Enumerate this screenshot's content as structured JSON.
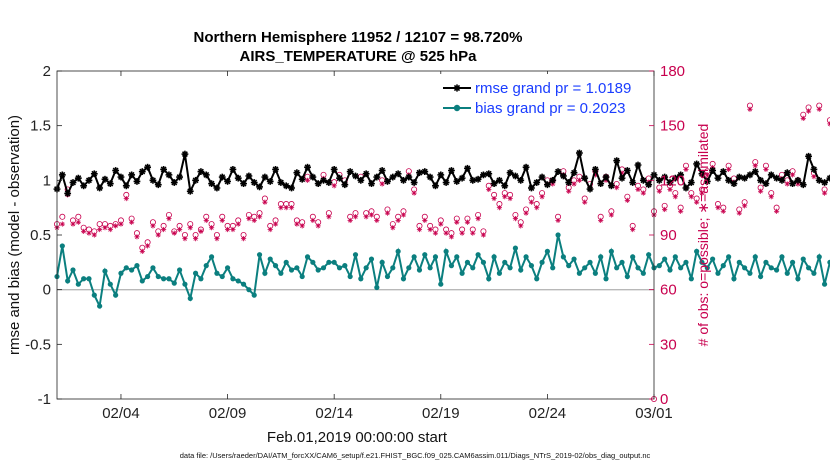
{
  "chart_data": {
    "type": "line",
    "title": "Northern Hemisphere 11952 / 12107 = 98.720%",
    "subtitle": "AIRS_TEMPERATURE @ 525 hPa",
    "xlabel": "Feb.01,2019 00:00:00 start",
    "ylabel": "rmse and bias (model - observation)",
    "y2label": "# of obs: o=possible; ∗=assimilated",
    "footer": "data file: /Users/raeder/DAI/ATM_forcXX/CAM6_setup/f.e21.FHIST_BGC.f09_025.CAM6assim.011/Diags_NTrS_2019-02/obs_diag_output.nc",
    "xlim": [
      0,
      28
    ],
    "ylim": [
      -1,
      2
    ],
    "y2lim": [
      0,
      180
    ],
    "x_ticks": [
      {
        "x": 3,
        "label": "02/04"
      },
      {
        "x": 8,
        "label": "02/09"
      },
      {
        "x": 13,
        "label": "02/14"
      },
      {
        "x": 18,
        "label": "02/19"
      },
      {
        "x": 23,
        "label": "02/24"
      },
      {
        "x": 28,
        "label": "03/01"
      }
    ],
    "y_ticks": [
      {
        "v": -1,
        "label": "-1"
      },
      {
        "v": -0.5,
        "label": "-0.5"
      },
      {
        "v": 0,
        "label": "0"
      },
      {
        "v": 0.5,
        "label": "0.5"
      },
      {
        "v": 1,
        "label": "1"
      },
      {
        "v": 1.5,
        "label": "1.5"
      },
      {
        "v": 2,
        "label": "2"
      }
    ],
    "y2_ticks": [
      {
        "v": 0,
        "label": "0"
      },
      {
        "v": 30,
        "label": "30"
      },
      {
        "v": 60,
        "label": "60"
      },
      {
        "v": 90,
        "label": "90"
      },
      {
        "v": 120,
        "label": "120"
      },
      {
        "v": 150,
        "label": "150"
      },
      {
        "v": 180,
        "label": "180"
      }
    ],
    "legend": {
      "placement": "top-right",
      "entries": [
        {
          "label": "rmse grand pr = 1.0189",
          "color": "#000000",
          "marker": "asterisk"
        },
        {
          "label": "bias grand pr = 0.2023",
          "color": "#0b7f7f",
          "marker": "circle"
        }
      ]
    },
    "x_start": 0.0,
    "x_step": 0.25,
    "rmse": [
      0.92,
      1.05,
      0.88,
      0.98,
      1.02,
      0.95,
      1.0,
      1.06,
      0.93,
      1.01,
      0.97,
      1.09,
      1.03,
      0.95,
      1.05,
      0.99,
      1.08,
      1.12,
      1.0,
      0.96,
      1.1,
      1.05,
      0.98,
      1.03,
      1.24,
      0.9,
      1.0,
      1.08,
      1.05,
      0.97,
      0.93,
      1.03,
      0.99,
      1.1,
      1.02,
      0.97,
      1.04,
      0.98,
      0.94,
      1.03,
      0.99,
      1.1,
      0.98,
      0.95,
      0.93,
      1.07,
      1.01,
      1.12,
      1.03,
      0.97,
      1.0,
      0.98,
      1.1,
      1.02,
      0.96,
      1.08,
      1.04,
      1.0,
      1.06,
      0.97,
      1.03,
      1.09,
      0.99,
      1.03,
      1.06,
      1.0,
      1.03,
      0.98,
      1.07,
      1.08,
      1.03,
      0.95,
      1.05,
      0.98,
      1.09,
      0.99,
      1.02,
      1.11,
      1.0,
      1.01,
      1.05,
      1.06,
      0.97,
      1.0,
      0.95,
      1.07,
      1.04,
      1.0,
      1.12,
      0.93,
      0.98,
      1.03,
      0.96,
      1.0,
      1.08,
      1.04,
      0.98,
      1.07,
      1.25,
      1.02,
      0.92,
      1.1,
      0.97,
      1.03,
      0.95,
      1.18,
      1.02,
      1.09,
      0.98,
      1.14,
      1.0,
      0.96,
      1.05,
      1.0,
      1.03,
      0.98,
      1.02,
      1.05,
      0.93,
      0.98,
      1.15,
      1.06,
      0.99,
      1.09,
      1.02,
      1.08,
      1.0,
      0.97,
      1.03,
      1.02,
      1.05,
      1.08,
      1.0,
      0.97,
      1.05,
      1.02,
      1.0,
      1.07,
      0.97,
      1.0,
      0.96,
      1.22,
      1.1,
      1.0,
      0.98,
      1.02,
      0.94,
      0.97,
      0.98,
      1.01,
      1.0
    ],
    "bias": [
      0.12,
      0.4,
      0.08,
      0.18,
      0.05,
      0.1,
      0.1,
      -0.05,
      -0.15,
      0.17,
      0.05,
      -0.05,
      0.15,
      0.2,
      0.18,
      0.22,
      0.08,
      0.12,
      0.2,
      0.12,
      0.1,
      0.1,
      0.06,
      0.18,
      0.05,
      -0.08,
      0.15,
      0.1,
      0.22,
      0.3,
      0.15,
      0.12,
      0.2,
      0.1,
      0.08,
      0.05,
      0.0,
      -0.05,
      0.32,
      0.15,
      0.28,
      0.22,
      0.15,
      0.25,
      0.18,
      0.2,
      0.12,
      0.3,
      0.25,
      0.18,
      0.2,
      0.25,
      0.25,
      0.2,
      0.22,
      0.12,
      0.32,
      0.1,
      0.2,
      0.28,
      0.02,
      0.25,
      0.12,
      0.2,
      0.35,
      0.1,
      0.2,
      0.3,
      0.18,
      0.32,
      0.2,
      0.3,
      0.05,
      0.35,
      0.22,
      0.3,
      0.15,
      0.25,
      0.2,
      0.32,
      0.25,
      0.1,
      0.3,
      0.15,
      0.25,
      0.2,
      0.38,
      0.18,
      0.3,
      0.22,
      0.1,
      0.25,
      0.35,
      0.2,
      0.5,
      0.3,
      0.22,
      0.28,
      0.15,
      0.2,
      0.25,
      0.15,
      0.3,
      0.1,
      0.35,
      0.2,
      0.25,
      0.12,
      0.3,
      0.2,
      0.15,
      0.32,
      0.2,
      0.22,
      0.28,
      0.18,
      0.3,
      0.2,
      0.25,
      0.1,
      0.35,
      0.25,
      0.2,
      0.28,
      0.15,
      0.22,
      0.3,
      0.1,
      0.25,
      0.2,
      0.15,
      0.3,
      0.12,
      0.25,
      0.2,
      0.18,
      0.3,
      0.15,
      0.25,
      0.1,
      0.28,
      0.2,
      0.15,
      0.3,
      0.05,
      0.25,
      0.18,
      0.22,
      0.3,
      0.1,
      0.25,
      0.32
    ],
    "nposs": [
      96,
      100,
      115,
      98,
      100,
      94,
      93,
      92,
      96,
      96,
      95,
      96,
      98,
      112,
      99,
      91,
      83,
      86,
      97,
      92,
      95,
      101,
      92,
      95,
      90,
      96,
      90,
      93,
      100,
      96,
      90,
      100,
      95,
      95,
      98,
      90,
      101,
      100,
      102,
      110,
      95,
      98,
      107,
      107,
      107,
      98,
      97,
      122,
      100,
      97,
      123,
      102,
      119,
      123,
      120,
      100,
      102,
      122,
      102,
      103,
      100,
      120,
      104,
      96,
      100,
      103,
      125,
      115,
      95,
      100,
      95,
      93,
      98,
      93,
      91,
      99,
      93,
      99,
      93,
      101,
      92,
      117,
      112,
      107,
      113,
      112,
      101,
      97,
      104,
      110,
      107,
      113,
      120,
      120,
      100,
      125,
      116,
      120,
      122,
      110,
      118,
      125,
      100,
      122,
      103,
      118,
      126,
      111,
      95,
      117,
      115,
      121,
      103,
      116,
      106,
      117,
      113,
      105,
      128,
      113,
      110,
      115,
      125,
      129,
      107,
      105,
      128,
      121,
      104,
      108,
      161,
      130,
      116,
      128,
      113,
      105,
      123,
      120,
      125,
      120,
      156,
      160,
      124,
      161,
      115,
      153,
      160,
      168
    ],
    "nassim": [
      94,
      96,
      112,
      96,
      97,
      92,
      91,
      90,
      93,
      94,
      93,
      95,
      96,
      110,
      97,
      89,
      81,
      84,
      95,
      90,
      93,
      99,
      91,
      93,
      88,
      94,
      88,
      92,
      98,
      94,
      88,
      98,
      93,
      93,
      96,
      88,
      99,
      98,
      100,
      108,
      93,
      96,
      105,
      105,
      105,
      96,
      95,
      120,
      98,
      95,
      121,
      100,
      117,
      121,
      118,
      98,
      100,
      120,
      100,
      101,
      98,
      118,
      102,
      94,
      98,
      101,
      123,
      113,
      93,
      98,
      93,
      91,
      96,
      91,
      89,
      97,
      91,
      97,
      91,
      99,
      90,
      115,
      110,
      105,
      111,
      110,
      99,
      95,
      102,
      108,
      105,
      111,
      118,
      118,
      98,
      123,
      114,
      118,
      120,
      108,
      116,
      123,
      98,
      120,
      101,
      116,
      124,
      109,
      93,
      115,
      113,
      119,
      101,
      114,
      104,
      115,
      111,
      103,
      126,
      111,
      108,
      113,
      123,
      127,
      105,
      103,
      126,
      119,
      102,
      106,
      159,
      128,
      114,
      126,
      111,
      103,
      121,
      118,
      123,
      118,
      154,
      158,
      122,
      159,
      113,
      151,
      158,
      166
    ]
  }
}
